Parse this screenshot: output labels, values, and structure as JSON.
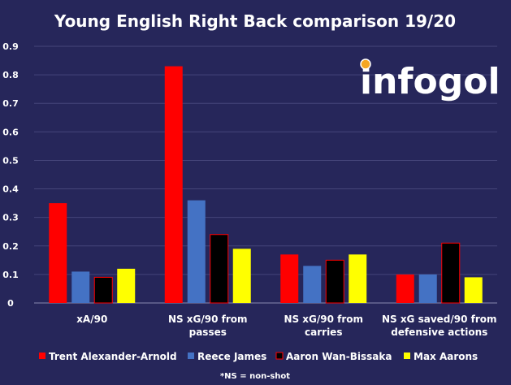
{
  "chart_data": {
    "type": "bar",
    "title": "Young English Right Back comparison 19/20",
    "categories": [
      [
        "xA/90"
      ],
      [
        "NS xG/90  from",
        "passes"
      ],
      [
        "NS xG/90  from",
        "carries"
      ],
      [
        "NS xG saved/90  from",
        "defensive actions"
      ]
    ],
    "ylim": [
      0,
      0.9
    ],
    "yticks": [
      "0",
      "0.1",
      "0.2",
      "0.3",
      "0.4",
      "0.5",
      "0.6",
      "0.7",
      "0.8",
      "0.9"
    ],
    "series": [
      {
        "name": "Trent Alexander-Arnold",
        "color": "#ff0000",
        "values": [
          0.35,
          0.83,
          0.17,
          0.1
        ]
      },
      {
        "name": "Reece James",
        "color": "#4472c4",
        "values": [
          0.11,
          0.36,
          0.13,
          0.1
        ]
      },
      {
        "name": "Aaron Wan-Bissaka",
        "color": "#000000",
        "stroke": "#ff0000",
        "values": [
          0.09,
          0.24,
          0.15,
          0.21
        ]
      },
      {
        "name": "Max Aarons",
        "color": "#ffff00",
        "values": [
          0.12,
          0.19,
          0.17,
          0.09
        ]
      }
    ],
    "grid": true,
    "legend": "bottom",
    "footnote": "*NS = non-shot"
  },
  "logo": {
    "text": "infogol",
    "colors": {
      "light": "#ffffff",
      "accent": "#1a9fe0",
      "dark": "#26265a",
      "ball": "#f5a623"
    }
  }
}
